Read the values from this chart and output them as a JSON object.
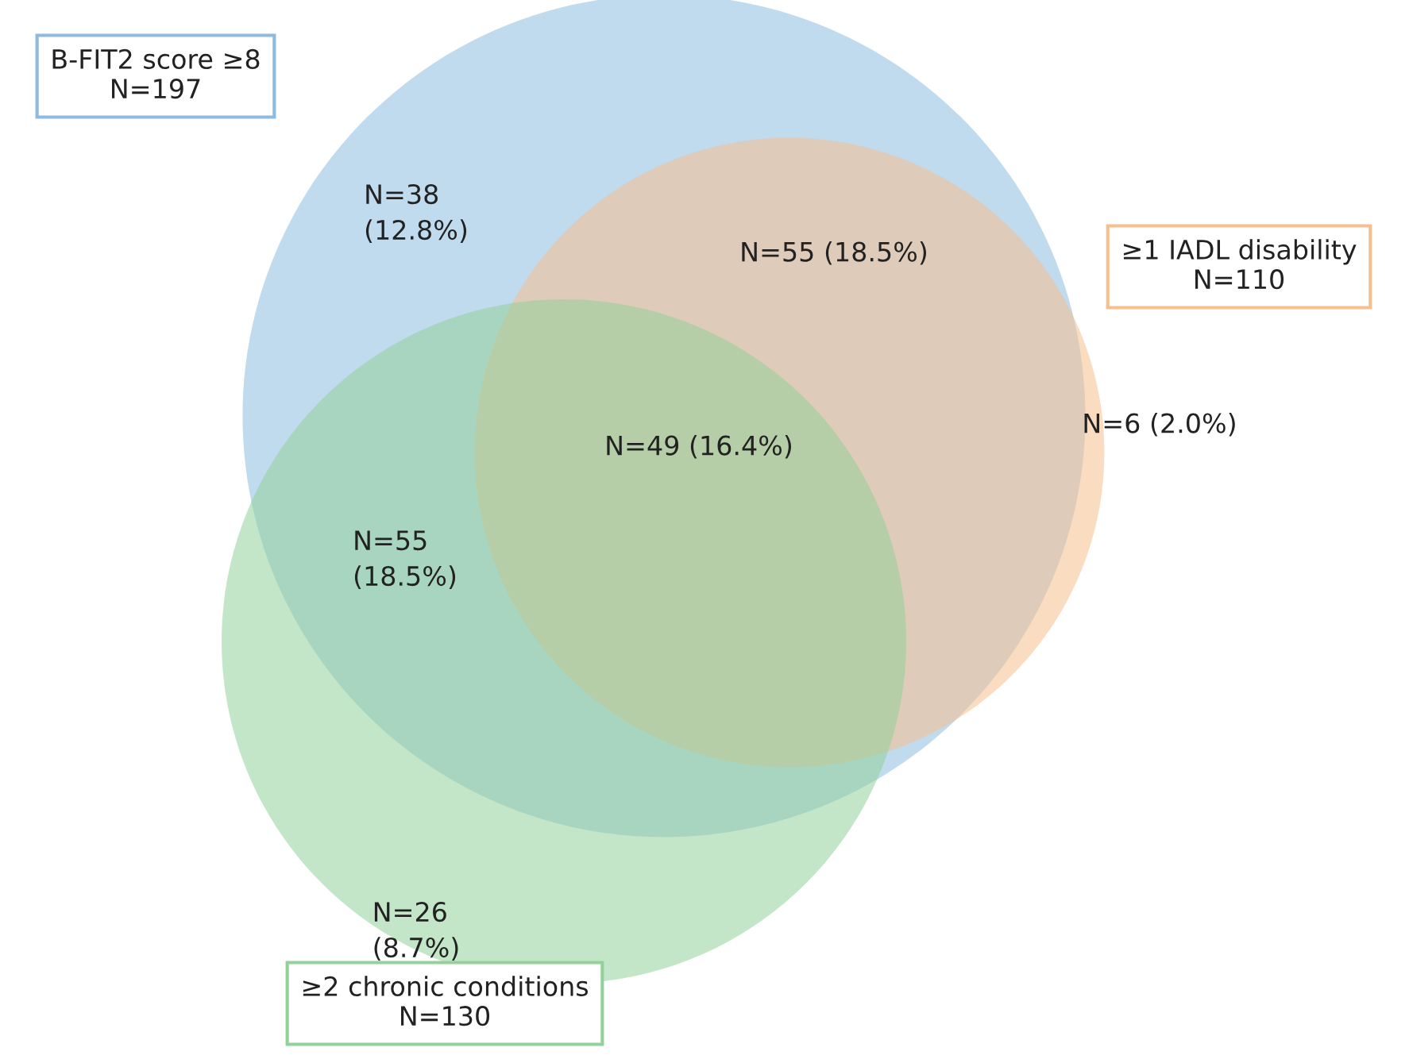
{
  "chart_data": {
    "type": "other",
    "categories": [
      "B-FIT2 score ≥8",
      "≥1 IADL disability",
      "≥2 chronic conditions"
    ],
    "values": [
      197,
      110,
      130
    ],
    "value_labels": [
      "N=197",
      "N=110",
      "N=130"
    ],
    "colors": [
      "#8dbbe0",
      "#f6c08e",
      "#93d19a"
    ],
    "annotations": [
      "N=38\n(12.8%)",
      "N=55 (18.5%)",
      "N=6 (2.0%)",
      "N=49 (16.4%)",
      "N=55\n(18.5%)",
      "N=26\n(8.7%)"
    ]
  }
}
